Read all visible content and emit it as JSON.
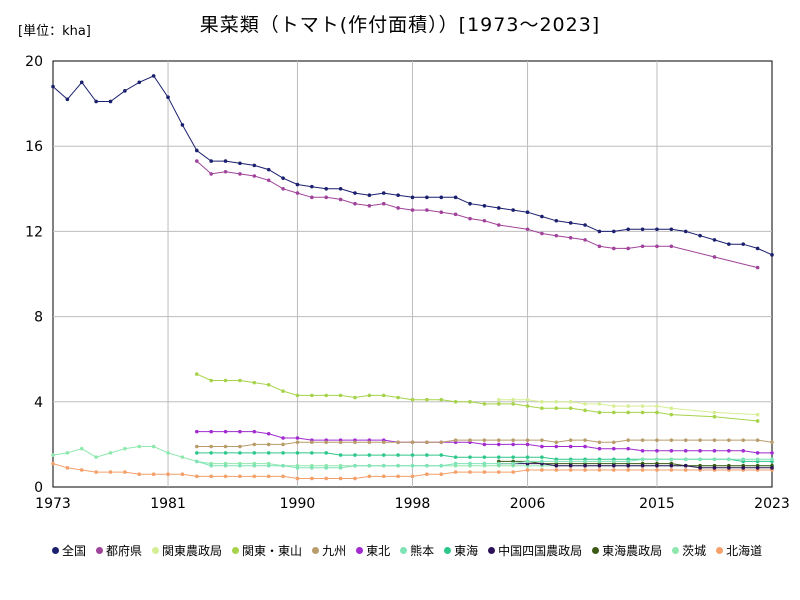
{
  "unit_label": "[単位：kha]",
  "chart_data": {
    "type": "line",
    "title": "果菜類（トマト(作付面積））[1973〜2023]",
    "xlabel": "",
    "ylabel": "",
    "xlim": [
      1973,
      2023
    ],
    "ylim": [
      0,
      20
    ],
    "x_ticks": [
      1973,
      1981,
      1990,
      1998,
      2006,
      2015,
      2023
    ],
    "y_ticks": [
      0,
      4,
      8,
      12,
      16,
      20
    ],
    "grid": true,
    "legend_position": "bottom",
    "series": [
      {
        "name": "全国",
        "color": "#1a1f6e",
        "x": [
          1973,
          1974,
          1975,
          1976,
          1977,
          1978,
          1979,
          1980,
          1981,
          1982,
          1983,
          1984,
          1985,
          1986,
          1987,
          1988,
          1989,
          1990,
          1991,
          1992,
          1993,
          1994,
          1995,
          1996,
          1997,
          1998,
          1999,
          2000,
          2001,
          2002,
          2003,
          2004,
          2005,
          2006,
          2007,
          2008,
          2009,
          2010,
          2011,
          2012,
          2013,
          2014,
          2015,
          2016,
          2017,
          2018,
          2019,
          2020,
          2021,
          2022,
          2023
        ],
        "y": [
          18.8,
          18.2,
          19.0,
          18.1,
          18.1,
          18.6,
          19.0,
          19.3,
          18.3,
          17.0,
          15.8,
          15.3,
          15.3,
          15.2,
          15.1,
          14.9,
          14.5,
          14.2,
          14.1,
          14.0,
          14.0,
          13.8,
          13.7,
          13.8,
          13.7,
          13.6,
          13.6,
          13.6,
          13.6,
          13.3,
          13.2,
          13.1,
          13.0,
          12.9,
          12.7,
          12.5,
          12.4,
          12.3,
          12.0,
          12.0,
          12.1,
          12.1,
          12.1,
          12.1,
          12.0,
          11.8,
          11.6,
          11.4,
          11.4,
          11.2,
          10.9
        ]
      },
      {
        "name": "都府県",
        "color": "#a0439a",
        "x": [
          1983,
          1984,
          1985,
          1986,
          1987,
          1988,
          1989,
          1990,
          1991,
          1992,
          1993,
          1994,
          1995,
          1996,
          1997,
          1998,
          1999,
          2000,
          2001,
          2002,
          2003,
          2004,
          2006,
          2007,
          2008,
          2009,
          2010,
          2011,
          2012,
          2013,
          2014,
          2015,
          2016,
          2019,
          2022
        ],
        "y": [
          15.3,
          14.7,
          14.8,
          14.7,
          14.6,
          14.4,
          14.0,
          13.8,
          13.6,
          13.6,
          13.5,
          13.3,
          13.2,
          13.3,
          13.1,
          13.0,
          13.0,
          12.9,
          12.8,
          12.6,
          12.5,
          12.3,
          12.1,
          11.9,
          11.8,
          11.7,
          11.6,
          11.3,
          11.2,
          11.2,
          11.3,
          11.3,
          11.3,
          10.8,
          10.3
        ]
      },
      {
        "name": "関東農政局",
        "color": "#d6ee95",
        "x": [
          2004,
          2005,
          2006,
          2007,
          2008,
          2009,
          2010,
          2011,
          2012,
          2013,
          2014,
          2015,
          2016,
          2019,
          2022
        ],
        "y": [
          4.1,
          4.1,
          4.1,
          4.0,
          4.0,
          4.0,
          3.9,
          3.9,
          3.8,
          3.8,
          3.8,
          3.8,
          3.7,
          3.5,
          3.4
        ]
      },
      {
        "name": "関東・東山",
        "color": "#a6d34a",
        "x": [
          1983,
          1984,
          1985,
          1986,
          1987,
          1988,
          1989,
          1990,
          1991,
          1992,
          1993,
          1994,
          1995,
          1996,
          1997,
          1998,
          1999,
          2000,
          2001,
          2002,
          2003,
          2004,
          2005,
          2006,
          2007,
          2008,
          2009,
          2010,
          2011,
          2012,
          2013,
          2014,
          2015,
          2016,
          2019,
          2022
        ],
        "y": [
          5.3,
          5.0,
          5.0,
          5.0,
          4.9,
          4.8,
          4.5,
          4.3,
          4.3,
          4.3,
          4.3,
          4.2,
          4.3,
          4.3,
          4.2,
          4.1,
          4.1,
          4.1,
          4.0,
          4.0,
          3.9,
          3.9,
          3.9,
          3.8,
          3.7,
          3.7,
          3.7,
          3.6,
          3.5,
          3.5,
          3.5,
          3.5,
          3.5,
          3.4,
          3.3,
          3.1
        ]
      },
      {
        "name": "九州",
        "color": "#b89c6a",
        "x": [
          1983,
          1984,
          1985,
          1986,
          1987,
          1988,
          1989,
          1990,
          1991,
          1992,
          1993,
          1994,
          1995,
          1996,
          1997,
          1998,
          1999,
          2000,
          2001,
          2002,
          2003,
          2004,
          2005,
          2006,
          2007,
          2008,
          2009,
          2010,
          2011,
          2012,
          2013,
          2014,
          2015,
          2016,
          2017,
          2018,
          2019,
          2020,
          2021,
          2022,
          2023
        ],
        "y": [
          1.9,
          1.9,
          1.9,
          1.9,
          2.0,
          2.0,
          2.0,
          2.1,
          2.1,
          2.1,
          2.1,
          2.1,
          2.1,
          2.1,
          2.1,
          2.1,
          2.1,
          2.1,
          2.2,
          2.2,
          2.2,
          2.2,
          2.2,
          2.2,
          2.2,
          2.1,
          2.2,
          2.2,
          2.1,
          2.1,
          2.2,
          2.2,
          2.2,
          2.2,
          2.2,
          2.2,
          2.2,
          2.2,
          2.2,
          2.2,
          2.1
        ]
      },
      {
        "name": "東北",
        "color": "#a12ad0",
        "x": [
          1983,
          1984,
          1985,
          1986,
          1987,
          1988,
          1989,
          1990,
          1991,
          1992,
          1993,
          1994,
          1995,
          1996,
          1997,
          1998,
          1999,
          2000,
          2001,
          2002,
          2003,
          2004,
          2005,
          2006,
          2007,
          2008,
          2009,
          2010,
          2011,
          2012,
          2013,
          2014,
          2015,
          2016,
          2017,
          2018,
          2019,
          2020,
          2021,
          2022,
          2023
        ],
        "y": [
          2.6,
          2.6,
          2.6,
          2.6,
          2.6,
          2.5,
          2.3,
          2.3,
          2.2,
          2.2,
          2.2,
          2.2,
          2.2,
          2.2,
          2.1,
          2.1,
          2.1,
          2.1,
          2.1,
          2.1,
          2.0,
          2.0,
          2.0,
          2.0,
          1.9,
          1.9,
          1.9,
          1.9,
          1.8,
          1.8,
          1.8,
          1.7,
          1.7,
          1.7,
          1.7,
          1.7,
          1.7,
          1.7,
          1.7,
          1.6,
          1.6
        ]
      },
      {
        "name": "熊本",
        "color": "#7fe3b5",
        "x": [
          1983,
          1984,
          1985,
          1986,
          1987,
          1988,
          1989,
          1990,
          1991,
          1992,
          1993,
          1994,
          1995,
          1996,
          1997,
          1998,
          1999,
          2000,
          2001,
          2002,
          2003,
          2004,
          2005,
          2006,
          2007,
          2008,
          2009,
          2010,
          2011,
          2012,
          2013,
          2014,
          2015,
          2016,
          2017,
          2018,
          2019,
          2020,
          2021,
          2022,
          2023
        ],
        "y": [
          1.2,
          1.0,
          1.0,
          1.0,
          1.0,
          1.0,
          1.0,
          0.9,
          0.9,
          0.9,
          0.9,
          1.0,
          1.0,
          1.0,
          1.0,
          1.0,
          1.0,
          1.0,
          1.1,
          1.1,
          1.1,
          1.1,
          1.1,
          1.2,
          1.2,
          1.2,
          1.2,
          1.2,
          1.2,
          1.2,
          1.2,
          1.3,
          1.3,
          1.3,
          1.3,
          1.3,
          1.3,
          1.3,
          1.3,
          1.3,
          1.3
        ]
      },
      {
        "name": "東海",
        "color": "#2dc78a",
        "x": [
          1983,
          1984,
          1985,
          1986,
          1987,
          1988,
          1989,
          1990,
          1991,
          1992,
          1993,
          1994,
          1995,
          1996,
          1997,
          1998,
          1999,
          2000,
          2001,
          2002,
          2003,
          2004,
          2005,
          2006,
          2007,
          2008,
          2009,
          2010,
          2011,
          2012,
          2013,
          2014,
          2015,
          2016,
          2017,
          2018,
          2019,
          2020,
          2021,
          2022,
          2023
        ],
        "y": [
          1.6,
          1.6,
          1.6,
          1.6,
          1.6,
          1.6,
          1.6,
          1.6,
          1.6,
          1.6,
          1.5,
          1.5,
          1.5,
          1.5,
          1.5,
          1.5,
          1.5,
          1.5,
          1.4,
          1.4,
          1.4,
          1.4,
          1.4,
          1.4,
          1.4,
          1.3,
          1.3,
          1.3,
          1.3,
          1.3,
          1.3,
          1.3,
          1.3,
          1.3,
          1.3,
          1.3,
          1.3,
          1.3,
          1.2,
          1.2,
          1.2
        ]
      },
      {
        "name": "中国四国農政局",
        "color": "#2c1259",
        "x": [
          2004,
          2005,
          2006,
          2007,
          2008,
          2009,
          2010,
          2011,
          2012,
          2013,
          2014,
          2015,
          2016,
          2017,
          2018,
          2019,
          2020,
          2021,
          2022,
          2023
        ],
        "y": [
          1.1,
          1.1,
          1.1,
          1.1,
          1.0,
          1.0,
          1.0,
          1.0,
          1.0,
          1.0,
          1.0,
          1.0,
          1.0,
          1.0,
          0.9,
          0.9,
          0.9,
          0.9,
          0.9,
          0.9
        ]
      },
      {
        "name": "東海農政局",
        "color": "#3c5a14",
        "x": [
          2004,
          2005,
          2006,
          2007,
          2008,
          2009,
          2010,
          2011,
          2012,
          2013,
          2014,
          2015,
          2016,
          2017,
          2018,
          2019,
          2020,
          2021,
          2022,
          2023
        ],
        "y": [
          1.2,
          1.2,
          1.2,
          1.1,
          1.1,
          1.1,
          1.1,
          1.1,
          1.1,
          1.1,
          1.1,
          1.1,
          1.1,
          1.0,
          1.0,
          1.0,
          1.0,
          1.0,
          1.0,
          1.0
        ]
      },
      {
        "name": "茨城",
        "color": "#8ee8ae",
        "x": [
          1973,
          1974,
          1975,
          1976,
          1977,
          1978,
          1979,
          1980,
          1981,
          1982,
          1983,
          1984,
          1985,
          1986,
          1987,
          1988,
          1989,
          1990,
          1991,
          1992,
          1993,
          1994,
          1995,
          1996,
          1997,
          1998,
          1999,
          2000,
          2001,
          2002,
          2003,
          2004,
          2005,
          2006,
          2007,
          2008,
          2009,
          2010,
          2011,
          2012,
          2013,
          2014,
          2015,
          2016,
          2017,
          2018,
          2019,
          2020,
          2021,
          2022,
          2023
        ],
        "y": [
          1.5,
          1.6,
          1.8,
          1.4,
          1.6,
          1.8,
          1.9,
          1.9,
          1.6,
          1.4,
          1.2,
          1.1,
          1.1,
          1.1,
          1.1,
          1.1,
          1.0,
          1.0,
          1.0,
          1.0,
          1.0,
          1.0,
          1.0,
          1.0,
          1.0,
          1.0,
          1.0,
          1.0,
          1.0,
          1.0,
          1.0,
          1.0,
          1.0,
          1.0,
          1.0,
          1.0,
          1.0,
          1.0,
          1.0,
          1.0,
          1.0,
          1.0,
          1.0,
          1.0,
          1.0,
          1.0,
          1.0,
          1.0,
          1.0,
          1.0,
          1.0
        ]
      },
      {
        "name": "北海道",
        "color": "#f3a06a",
        "x": [
          1973,
          1974,
          1975,
          1976,
          1977,
          1978,
          1979,
          1980,
          1981,
          1982,
          1983,
          1984,
          1985,
          1986,
          1987,
          1988,
          1989,
          1990,
          1991,
          1992,
          1993,
          1994,
          1995,
          1996,
          1997,
          1998,
          1999,
          2000,
          2001,
          2002,
          2003,
          2004,
          2005,
          2006,
          2007,
          2008,
          2009,
          2010,
          2011,
          2012,
          2013,
          2014,
          2015,
          2016,
          2017,
          2018,
          2019,
          2020,
          2021,
          2022,
          2023
        ],
        "y": [
          1.1,
          0.9,
          0.8,
          0.7,
          0.7,
          0.7,
          0.6,
          0.6,
          0.6,
          0.6,
          0.5,
          0.5,
          0.5,
          0.5,
          0.5,
          0.5,
          0.5,
          0.4,
          0.4,
          0.4,
          0.4,
          0.4,
          0.5,
          0.5,
          0.5,
          0.5,
          0.6,
          0.6,
          0.7,
          0.7,
          0.7,
          0.7,
          0.7,
          0.8,
          0.8,
          0.8,
          0.8,
          0.8,
          0.8,
          0.8,
          0.8,
          0.8,
          0.8,
          0.8,
          0.8,
          0.8,
          0.8,
          0.8,
          0.8,
          0.8,
          0.8
        ]
      }
    ]
  }
}
